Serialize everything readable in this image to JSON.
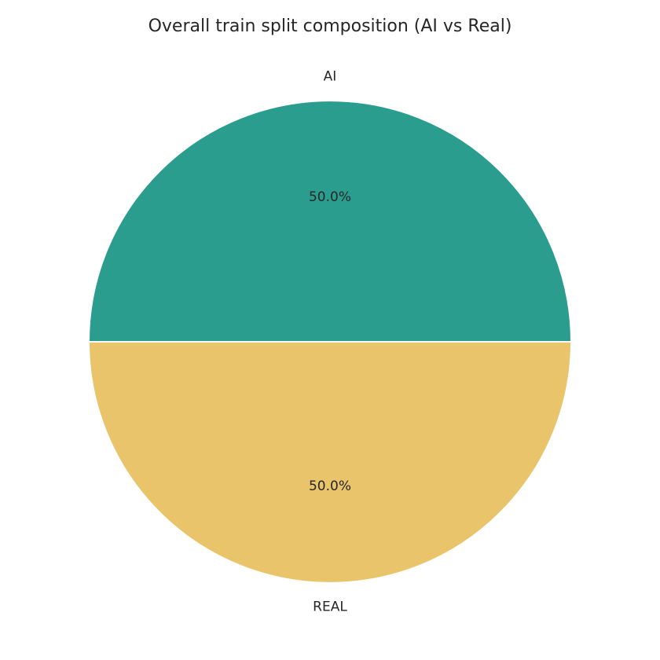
{
  "chart_data": {
    "type": "pie",
    "title": "Overall train split composition (AI vs Real)",
    "labels": [
      "AI",
      "REAL"
    ],
    "values": [
      50.0,
      50.0
    ],
    "percent_labels": [
      "50.0%",
      "50.0%"
    ],
    "colors": [
      "#2a9d8f",
      "#e9c46a"
    ],
    "start_angle_deg": 0,
    "direction": "counterclockwise",
    "legend": false
  }
}
